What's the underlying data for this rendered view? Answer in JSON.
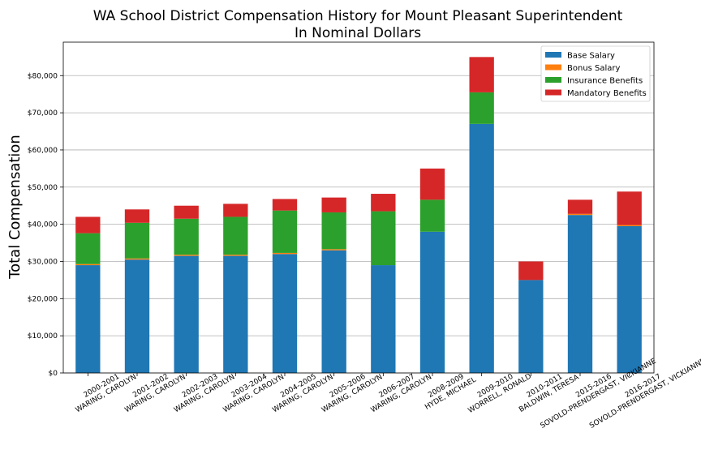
{
  "chart_data": {
    "type": "bar",
    "stacked": true,
    "title": "WA School District Compensation History for Mount Pleasant Superintendent",
    "subtitle": "In Nominal Dollars",
    "xlabel": "",
    "ylabel": "Total Compensation",
    "ylim": [
      0,
      89000
    ],
    "yticks": [
      "$0",
      "$10,000",
      "$20,000",
      "$30,000",
      "$40,000",
      "$50,000",
      "$60,000",
      "$70,000",
      "$80,000"
    ],
    "ytick_values": [
      0,
      10000,
      20000,
      30000,
      40000,
      50000,
      60000,
      70000,
      80000
    ],
    "grid": true,
    "legend_position": "top-right",
    "categories": [
      [
        "2000-2001",
        "WARING, CAROLYN"
      ],
      [
        "2001-2002",
        "WARING, CAROLYN"
      ],
      [
        "2002-2003",
        "WARING, CAROLYN"
      ],
      [
        "2003-2004",
        "WARING, CAROLYN"
      ],
      [
        "2004-2005",
        "WARING, CAROLYN"
      ],
      [
        "2005-2006",
        "WARING, CAROLYN"
      ],
      [
        "2006-2007",
        "WARING, CAROLYN"
      ],
      [
        "2008-2009",
        "HYDE, MICHAEL"
      ],
      [
        "2009-2010",
        "WORRELL, RONALD"
      ],
      [
        "2010-2011",
        "BALDWIN, TERESA"
      ],
      [
        "2015-2016",
        "SOVOLD-PRENDERGAST, VICKIANNE"
      ],
      [
        "2016-2017",
        "SOVOLD-PRENDERGAST, VICKIANNE"
      ]
    ],
    "series": [
      {
        "name": "Base Salary",
        "color": "#1f77b4",
        "values": [
          29000,
          30500,
          31500,
          31500,
          32000,
          33000,
          29000,
          38000,
          67000,
          25000,
          42500,
          39500
        ]
      },
      {
        "name": "Bonus Salary",
        "color": "#ff7f0e",
        "values": [
          300,
          300,
          300,
          300,
          300,
          300,
          0,
          0,
          0,
          0,
          300,
          300
        ]
      },
      {
        "name": "Insurance Benefits",
        "color": "#2ca02c",
        "values": [
          8300,
          9600,
          9700,
          10200,
          11400,
          9900,
          14500,
          8600,
          8500,
          0,
          0,
          0
        ]
      },
      {
        "name": "Mandatory Benefits",
        "color": "#d62728",
        "values": [
          4400,
          3600,
          3500,
          3500,
          3100,
          4000,
          4700,
          8400,
          9500,
          5000,
          3800,
          9000
        ]
      }
    ]
  }
}
